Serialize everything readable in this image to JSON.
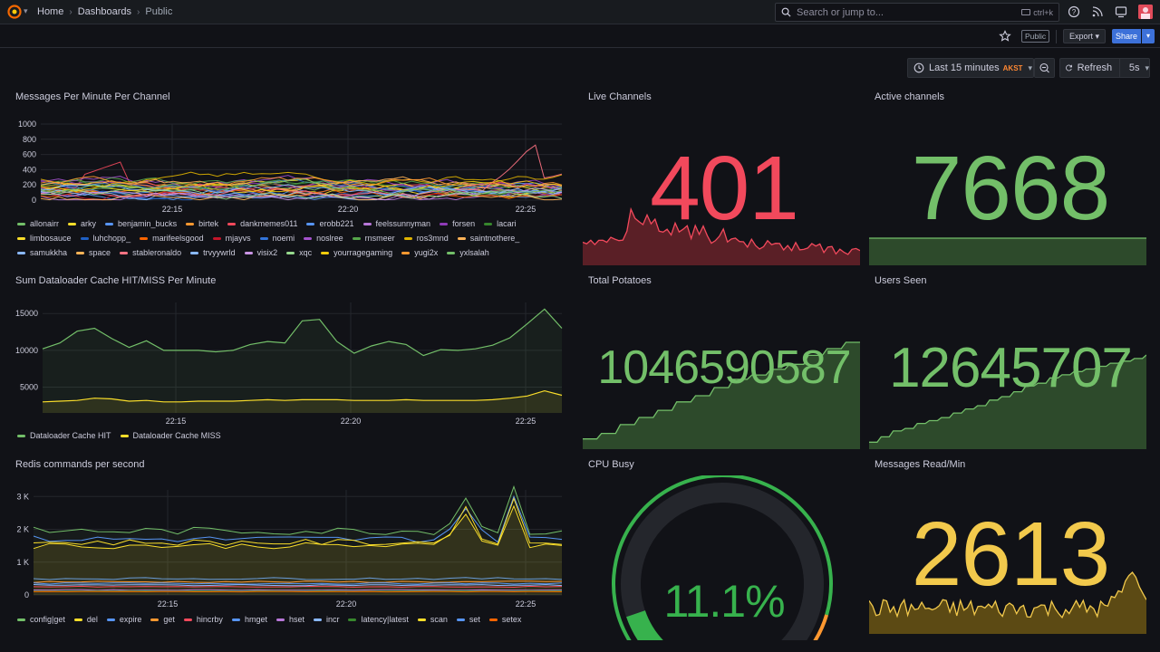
{
  "topbar": {
    "breadcrumbs": [
      "Home",
      "Dashboards",
      "Public"
    ],
    "search_placeholder": "Search or jump to...",
    "search_shortcut": "ctrl+k"
  },
  "toolbar": {
    "public_badge": "Public",
    "export_label": "Export",
    "share_label": "Share"
  },
  "timepicker": {
    "range": "Last 15 minutes",
    "timezone": "AKST",
    "refresh_label": "Refresh",
    "refresh_interval": "5s"
  },
  "colors": {
    "green": "#73bf69",
    "red": "#f2495c",
    "yellow": "#fade2a",
    "stat_yellow": "#f2c94c",
    "blue": "#5794f2",
    "orange": "#ff9830",
    "purple": "#b877d9"
  },
  "panels": {
    "messages_per_minute": {
      "title": "Messages Per Minute Per Channel",
      "legend": [
        {
          "name": "allonairr",
          "color": "#73bf69"
        },
        {
          "name": "arky",
          "color": "#fade2a"
        },
        {
          "name": "benjamin_bucks",
          "color": "#5794f2"
        },
        {
          "name": "birtek",
          "color": "#ff9830"
        },
        {
          "name": "dankmemes011",
          "color": "#f2495c"
        },
        {
          "name": "erobb221",
          "color": "#5794f2"
        },
        {
          "name": "feelssunnyman",
          "color": "#b877d9"
        },
        {
          "name": "forsen",
          "color": "#8f3bb8"
        },
        {
          "name": "lacari",
          "color": "#37872d"
        },
        {
          "name": "limbosauce",
          "color": "#fade2a"
        },
        {
          "name": "luhchopp_",
          "color": "#1f60c4"
        },
        {
          "name": "marifeelsgood",
          "color": "#fa6400"
        },
        {
          "name": "mjayvs",
          "color": "#c4162a"
        },
        {
          "name": "noemi",
          "color": "#3274d9"
        },
        {
          "name": "noslree",
          "color": "#a352cc"
        },
        {
          "name": "rnsmeer",
          "color": "#56a64b"
        },
        {
          "name": "ros3mnd",
          "color": "#e0b400"
        },
        {
          "name": "saintnothere_",
          "color": "#ffb357"
        },
        {
          "name": "samukkha",
          "color": "#8ab8ff"
        },
        {
          "name": "space",
          "color": "#ffb357"
        },
        {
          "name": "stableronaldo",
          "color": "#ff7383"
        },
        {
          "name": "trvyywrld",
          "color": "#8ab8ff"
        },
        {
          "name": "visix2",
          "color": "#ca95e5"
        },
        {
          "name": "xqc",
          "color": "#96d98d"
        },
        {
          "name": "yourragegaming",
          "color": "#f2cc0c"
        },
        {
          "name": "yugi2x",
          "color": "#ff9830"
        },
        {
          "name": "yxlsalah",
          "color": "#73bf69"
        }
      ]
    },
    "live_channels": {
      "title": "Live Channels",
      "value": "401"
    },
    "active_channels": {
      "title": "Active channels",
      "value": "7668"
    },
    "dataloader": {
      "title": "Sum Dataloader Cache HIT/MISS Per Minute",
      "legend": [
        {
          "name": "Dataloader Cache HIT",
          "color": "#73bf69"
        },
        {
          "name": "Dataloader Cache MISS",
          "color": "#fade2a"
        }
      ]
    },
    "total_potatoes": {
      "title": "Total Potatoes",
      "value": "1046590587"
    },
    "users_seen": {
      "title": "Users Seen",
      "value": "12645707"
    },
    "redis": {
      "title": "Redis commands per second",
      "legend": [
        {
          "name": "config|get",
          "color": "#73bf69"
        },
        {
          "name": "del",
          "color": "#fade2a"
        },
        {
          "name": "expire",
          "color": "#5794f2"
        },
        {
          "name": "get",
          "color": "#ff9830"
        },
        {
          "name": "hincrby",
          "color": "#f2495c"
        },
        {
          "name": "hmget",
          "color": "#5794f2"
        },
        {
          "name": "hset",
          "color": "#b877d9"
        },
        {
          "name": "incr",
          "color": "#8ab8ff"
        },
        {
          "name": "latency|latest",
          "color": "#37872d"
        },
        {
          "name": "scan",
          "color": "#fade2a"
        },
        {
          "name": "set",
          "color": "#5794f2"
        },
        {
          "name": "setex",
          "color": "#fa6400"
        }
      ]
    },
    "cpu_busy": {
      "title": "CPU Busy",
      "value": "11.1%",
      "percent": 11.1
    },
    "messages_read": {
      "title": "Messages Read/Min",
      "value": "2613"
    }
  },
  "chart_data": [
    {
      "type": "line",
      "title": "Messages Per Minute Per Channel",
      "x_ticks": [
        "22:15",
        "22:20",
        "22:25"
      ],
      "y_ticks": [
        "0",
        "200",
        "400",
        "600",
        "800",
        "1000"
      ],
      "ylim": [
        0,
        1000
      ],
      "note": "27 series shown, one per channel"
    },
    {
      "type": "area",
      "title": "Sum Dataloader Cache HIT/MISS Per Minute",
      "x_ticks": [
        "22:15",
        "22:20",
        "22:25"
      ],
      "y_ticks": [
        "5000",
        "10000",
        "15000"
      ],
      "series": [
        {
          "name": "Dataloader Cache HIT",
          "values": [
            10200,
            11000,
            12600,
            13000,
            11600,
            10400,
            11300,
            10000,
            10000,
            10000,
            9800,
            10000,
            10800,
            11200,
            11000,
            14000,
            14200,
            11200,
            9600,
            10600,
            11200,
            10800,
            9300,
            10100,
            10000,
            10200,
            10700,
            11700,
            13600,
            15600,
            13000
          ]
        },
        {
          "name": "Dataloader Cache MISS",
          "values": [
            3000,
            3100,
            3200,
            3500,
            3400,
            3100,
            3200,
            3000,
            3000,
            3100,
            3100,
            3100,
            3200,
            3300,
            3200,
            3300,
            3300,
            3300,
            3200,
            3200,
            3200,
            3300,
            3200,
            3200,
            3200,
            3200,
            3300,
            3500,
            3800,
            4500,
            3900
          ]
        }
      ]
    },
    {
      "type": "area",
      "title": "Redis commands per second",
      "x_ticks": [
        "22:15",
        "22:20",
        "22:25"
      ],
      "y_ticks": [
        "0",
        "1 K",
        "2 K",
        "3 K"
      ]
    }
  ]
}
